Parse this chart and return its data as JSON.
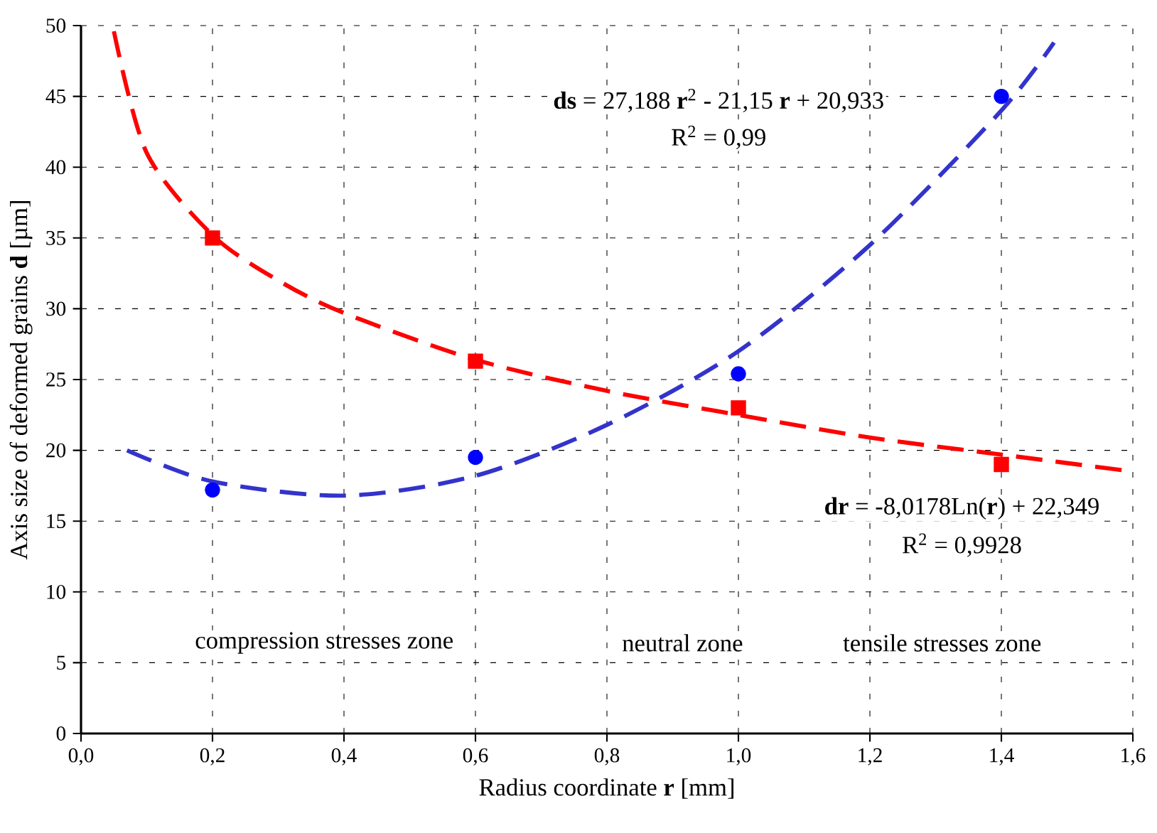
{
  "chart_data": {
    "type": "scatter",
    "xlabel": "Radius coordinate **r** [mm]",
    "ylabel": "Axis size of deformed grains **d** [µm]",
    "xlim": [
      0,
      1.6
    ],
    "ylim": [
      0,
      50
    ],
    "xticks": [
      {
        "value": 0,
        "label": "0,0"
      },
      {
        "value": 0.2,
        "label": "0,2"
      },
      {
        "value": 0.4,
        "label": "0,4"
      },
      {
        "value": 0.6,
        "label": "0,6"
      },
      {
        "value": 0.8,
        "label": "0,8"
      },
      {
        "value": 1.0,
        "label": "1,0"
      },
      {
        "value": 1.2,
        "label": "1,2"
      },
      {
        "value": 1.4,
        "label": "1,4"
      },
      {
        "value": 1.6,
        "label": "1,6"
      }
    ],
    "yticks": [
      0,
      5,
      10,
      15,
      20,
      25,
      30,
      35,
      40,
      45,
      50
    ],
    "grid": true,
    "series": [
      {
        "marker": "square",
        "color": "#ff0000",
        "x": [
          0.2,
          0.6,
          1.0,
          1.4
        ],
        "values": [
          35,
          26.3,
          23,
          19
        ]
      },
      {
        "marker": "circle",
        "color": "#0000ff",
        "x": [
          0.2,
          0.6,
          1.0,
          1.4
        ],
        "values": [
          17.2,
          19.5,
          25.4,
          45
        ]
      },
      {
        "type": "line",
        "line_style": "dashed",
        "color": "#ff0000",
        "x": [
          0.05,
          0.1,
          0.2,
          0.3,
          0.4,
          0.6,
          0.8,
          1.0,
          1.2,
          1.4,
          1.6
        ],
        "values": [
          49.6,
          41,
          35.2,
          32,
          29.7,
          26.4,
          24.2,
          22.5,
          20.9,
          19.7,
          18.5
        ]
      },
      {
        "type": "line",
        "line_style": "dashed",
        "color": "#3333cc",
        "x": [
          0.07,
          0.2,
          0.4,
          0.6,
          0.8,
          1.0,
          1.2,
          1.4,
          1.48
        ],
        "values": [
          20,
          17.8,
          16.8,
          18.2,
          21.8,
          27,
          34.5,
          44,
          48.8
        ]
      }
    ],
    "annotations": [
      "**ds** = 27,188 **r**$^{2}$ - 21,15 **r** + 20,933",
      "R$^{2}$ = 0,99",
      "**dr** = -8,0178Ln(**r**) + 22,349",
      "R$^{2}$ = 0,9928",
      "compression stresses zone",
      "neutral zone",
      "tensile stresses zone"
    ]
  }
}
